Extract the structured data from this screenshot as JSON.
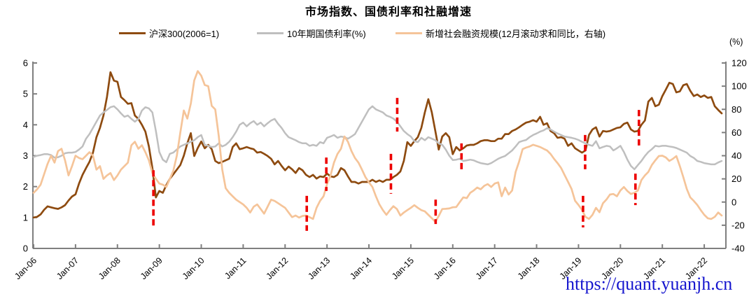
{
  "watermark": {
    "text": "https://quant.yuanjh.cn",
    "color": "#1414CE"
  },
  "chart_data": {
    "type": "line",
    "title": "市场指数、国债利率和社融增速",
    "x_start": "Jan-06",
    "x_end": "Jun-22",
    "x_tick_labels": [
      "Jan-06",
      "Jan-07",
      "Jan-08",
      "Jan-09",
      "Jan-10",
      "Jan-11",
      "Jan-12",
      "Jan-13",
      "Jan-14",
      "Jan-15",
      "Jan-16",
      "Jan-17",
      "Jan-18",
      "Jan-19",
      "Jan-20",
      "Jan-21",
      "Jan-22"
    ],
    "left_axis": {
      "min": 0,
      "max": 6,
      "ticks": [
        0,
        1,
        2,
        3,
        4,
        5,
        6
      ]
    },
    "right_axis": {
      "min": -40,
      "max": 120,
      "ticks": [
        -40,
        -20,
        0,
        20,
        40,
        60,
        80,
        100,
        120
      ],
      "unit_label": "(%)"
    },
    "grid": false,
    "legend_position": "top",
    "series": [
      {
        "name": "沪深300(2006=1)",
        "axis": "left",
        "color": "#8E4B10",
        "values": [
          1.0,
          1.02,
          1.1,
          1.25,
          1.36,
          1.33,
          1.3,
          1.28,
          1.33,
          1.4,
          1.55,
          1.68,
          1.75,
          2.1,
          2.38,
          2.6,
          2.8,
          3.1,
          3.6,
          3.9,
          4.3,
          4.9,
          5.7,
          5.43,
          5.39,
          4.9,
          4.8,
          4.68,
          4.7,
          4.3,
          4.19,
          4.0,
          3.78,
          3.3,
          2.6,
          1.65,
          1.86,
          1.8,
          2.05,
          2.25,
          2.4,
          2.55,
          2.7,
          3.0,
          3.4,
          3.73,
          2.99,
          3.25,
          3.46,
          3.24,
          3.35,
          3.21,
          2.83,
          2.76,
          2.8,
          2.85,
          2.9,
          3.28,
          3.4,
          3.21,
          3.24,
          3.28,
          3.24,
          3.21,
          3.1,
          3.12,
          3.06,
          2.99,
          2.9,
          2.72,
          2.83,
          2.67,
          2.53,
          2.65,
          2.56,
          2.44,
          2.6,
          2.53,
          2.38,
          2.31,
          2.38,
          2.26,
          2.33,
          2.31,
          2.42,
          2.33,
          2.31,
          2.38,
          2.6,
          2.53,
          2.33,
          2.15,
          2.15,
          2.1,
          2.15,
          2.15,
          2.15,
          2.22,
          2.15,
          2.2,
          2.15,
          2.22,
          2.22,
          2.31,
          2.38,
          2.49,
          2.83,
          3.44,
          3.32,
          3.47,
          3.6,
          3.9,
          4.4,
          4.83,
          4.4,
          3.8,
          3.2,
          3.62,
          3.73,
          3.6,
          3.05,
          3.28,
          3.17,
          3.24,
          3.33,
          3.35,
          3.35,
          3.4,
          3.47,
          3.5,
          3.5,
          3.47,
          3.47,
          3.55,
          3.55,
          3.7,
          3.7,
          3.8,
          3.85,
          3.92,
          4.0,
          4.07,
          4.1,
          4.15,
          4.1,
          4.26,
          4.0,
          4.05,
          3.8,
          3.73,
          3.58,
          3.6,
          3.55,
          3.32,
          3.4,
          3.24,
          3.17,
          3.1,
          3.17,
          3.67,
          3.85,
          3.92,
          3.62,
          3.8,
          3.78,
          3.8,
          3.85,
          3.9,
          3.92,
          4.03,
          4.07,
          3.85,
          3.78,
          3.8,
          4.0,
          4.14,
          4.75,
          4.87,
          4.6,
          4.65,
          4.93,
          5.14,
          5.36,
          5.32,
          5.05,
          5.08,
          5.28,
          5.32,
          5.1,
          4.93,
          4.98,
          4.9,
          4.95,
          4.87,
          4.9,
          4.6,
          4.48,
          4.37
        ]
      },
      {
        "name": "10年期国债利率(%)",
        "axis": "left",
        "color": "#BFBFBF",
        "values": [
          2.96,
          3.0,
          3.02,
          3.05,
          3.05,
          3.02,
          2.94,
          2.95,
          3.0,
          3.08,
          3.1,
          3.1,
          3.12,
          3.2,
          3.3,
          3.55,
          3.7,
          3.9,
          4.1,
          4.3,
          4.4,
          4.48,
          4.57,
          4.6,
          4.5,
          4.37,
          4.26,
          4.3,
          4.19,
          4.1,
          4.19,
          4.46,
          4.57,
          4.53,
          4.4,
          3.8,
          3.12,
          2.87,
          2.79,
          3.06,
          3.1,
          3.2,
          3.3,
          3.35,
          3.4,
          3.45,
          3.5,
          3.6,
          3.67,
          3.35,
          3.32,
          3.28,
          3.3,
          3.4,
          3.3,
          3.35,
          3.45,
          3.6,
          3.78,
          4.0,
          4.07,
          3.95,
          4.05,
          4.12,
          4.0,
          4.07,
          3.95,
          4.05,
          4.14,
          4.19,
          4.03,
          3.9,
          3.73,
          3.6,
          3.55,
          3.5,
          3.44,
          3.4,
          3.4,
          3.32,
          3.35,
          3.32,
          3.44,
          3.4,
          3.58,
          3.62,
          3.67,
          3.58,
          3.62,
          3.6,
          3.55,
          3.62,
          3.7,
          3.9,
          4.1,
          4.3,
          4.5,
          4.6,
          4.5,
          4.45,
          4.4,
          4.3,
          4.26,
          4.2,
          4.1,
          3.95,
          3.8,
          3.7,
          3.62,
          3.47,
          3.44,
          3.58,
          3.5,
          3.6,
          3.55,
          3.5,
          3.4,
          3.35,
          3.2,
          3.0,
          2.86,
          2.87,
          2.9,
          2.83,
          2.85,
          2.87,
          2.85,
          2.8,
          2.76,
          2.74,
          2.72,
          2.76,
          2.83,
          2.9,
          2.95,
          2.99,
          3.08,
          3.17,
          3.3,
          3.44,
          3.48,
          3.51,
          3.6,
          3.67,
          3.72,
          3.78,
          3.82,
          3.89,
          3.85,
          3.78,
          3.72,
          3.67,
          3.62,
          3.6,
          3.58,
          3.55,
          3.51,
          3.45,
          3.4,
          3.35,
          3.32,
          3.47,
          3.24,
          3.28,
          3.32,
          3.3,
          3.17,
          3.24,
          3.32,
          3.12,
          2.87,
          2.67,
          2.56,
          2.7,
          2.83,
          2.99,
          3.12,
          3.21,
          3.32,
          3.3,
          3.32,
          3.32,
          3.3,
          3.28,
          3.25,
          3.2,
          3.15,
          3.1,
          2.99,
          2.93,
          2.83,
          2.8,
          2.76,
          2.74,
          2.72,
          2.72,
          2.78,
          2.83
        ]
      },
      {
        "name": "新增社会融资规模(12月滚动求和同比，右轴)",
        "axis": "right",
        "color": "#F5C499",
        "values": [
          8,
          11,
          15,
          24,
          33,
          40,
          34,
          44,
          46,
          36,
          23,
          31,
          40,
          38,
          37,
          40,
          43,
          40,
          28,
          31,
          20,
          23,
          25,
          19,
          23,
          28,
          31,
          34,
          49,
          52,
          46,
          49,
          43,
          36,
          25,
          20,
          16,
          15,
          13,
          20,
          27,
          40,
          60,
          79,
          72,
          85,
          105,
          113,
          109,
          101,
          100,
          83,
          80,
          57,
          28,
          12,
          8,
          5,
          2,
          0,
          -2,
          -5,
          -9,
          -4,
          -2,
          -6,
          -10,
          -4,
          2,
          1,
          -1,
          -3,
          -5,
          -9,
          -13,
          -11.6,
          -13.4,
          -12,
          -11.6,
          -13,
          -14.6,
          -5,
          1,
          5,
          15.5,
          23,
          34,
          41.5,
          46,
          56.6,
          52,
          44,
          38,
          34,
          28,
          21.6,
          17,
          13,
          5,
          -2,
          -7,
          -11,
          -7,
          -3.6,
          -6,
          -11.6,
          -9,
          -7,
          -5,
          -2.7,
          -5,
          -7,
          -8,
          -11,
          -14,
          -17,
          -12,
          -6,
          -5.8,
          -5.5,
          -4.5,
          -4.3,
          0,
          4,
          3.4,
          8,
          10,
          12.5,
          11,
          14,
          15.5,
          13,
          16,
          17,
          5,
          12.5,
          6.5,
          10,
          26,
          35,
          45.7,
          47,
          48,
          49.4,
          48.5,
          47.5,
          46,
          44.5,
          41.5,
          37.3,
          33.6,
          29.5,
          23.4,
          17.4,
          11.3,
          1.1,
          -2.5,
          -6.8,
          -12.8,
          -14.6,
          -11,
          -5,
          -8.8,
          -1,
          2.2,
          6.5,
          7,
          5,
          10,
          13,
          9.5,
          7,
          8,
          10,
          19,
          23,
          26,
          32,
          36,
          39.7,
          40,
          38.5,
          35.5,
          37.3,
          39.7,
          31,
          21.6,
          11.3,
          4,
          1,
          -2.5,
          -7,
          -11,
          -14,
          -14.6,
          -12.8,
          -9,
          -11.6
        ]
      }
    ],
    "signal_markers": {
      "style": "vertical-dashed",
      "color": "#ED0000",
      "items": [
        {
          "month": 34.3,
          "top": 2.53,
          "bottom": 0.72
        },
        {
          "month": 78.2,
          "top": 1.7,
          "bottom": 0.57
        },
        {
          "month": 83.8,
          "top": 2.94,
          "bottom": 1.86
        },
        {
          "month": 102.3,
          "top": 3.06,
          "bottom": 1.77
        },
        {
          "month": 104.1,
          "top": 4.87,
          "bottom": 3.78
        },
        {
          "month": 115.1,
          "top": 1.58,
          "bottom": 0.79
        },
        {
          "month": 122.5,
          "top": 3.4,
          "bottom": 2.53
        },
        {
          "month": 157.3,
          "top": 1.7,
          "bottom": 0.68
        },
        {
          "month": 157.9,
          "top": 3.67,
          "bottom": 2.56
        },
        {
          "month": 172.3,
          "top": 2.42,
          "bottom": 1.4
        },
        {
          "month": 173.3,
          "top": 4.48,
          "bottom": 3.33
        }
      ]
    }
  }
}
